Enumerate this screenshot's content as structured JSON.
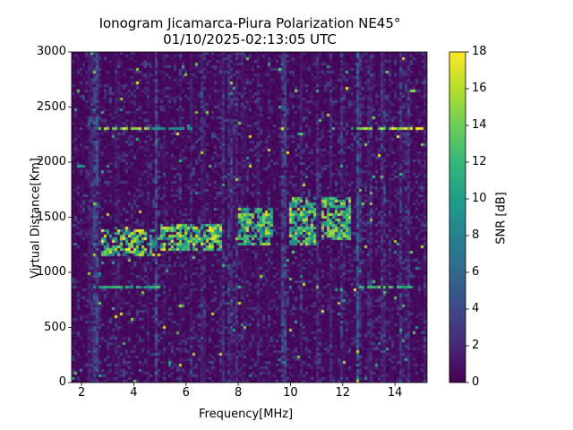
{
  "chart_data": {
    "type": "heatmap",
    "title": "Ionogram Jicamarca-Piura Polarization NE45°",
    "subtitle": "01/10/2025-02:13:05 UTC",
    "xlabel": "Frequency[MHz]",
    "ylabel": "Virtual Distance[Km]",
    "xlim": [
      1.62,
      15.23
    ],
    "ylim": [
      0,
      3000
    ],
    "xticks": [
      2,
      4,
      6,
      8,
      10,
      12,
      14
    ],
    "yticks": [
      0,
      500,
      1000,
      1500,
      2000,
      2500,
      3000
    ],
    "colorbar": {
      "label": "SNR [dB]",
      "range": [
        0,
        18
      ],
      "ticks": [
        0,
        2,
        4,
        6,
        8,
        10,
        12,
        14,
        16,
        18
      ],
      "colormap": "viridis"
    },
    "echo_regions": [
      {
        "f": [
          2.7,
          4.8
        ],
        "d": [
          1150,
          1400
        ],
        "snr": 15
      },
      {
        "f": [
          5.0,
          7.3
        ],
        "d": [
          1200,
          1450
        ],
        "snr": 15
      },
      {
        "f": [
          7.9,
          9.3
        ],
        "d": [
          1250,
          1600
        ],
        "snr": 14
      },
      {
        "f": [
          9.9,
          10.9
        ],
        "d": [
          1250,
          1700
        ],
        "snr": 14
      },
      {
        "f": [
          11.1,
          12.3
        ],
        "d": [
          1300,
          1700
        ],
        "snr": 14
      }
    ],
    "horizontal_lines": [
      {
        "f": [
          2.4,
          4.6
        ],
        "d": 2325,
        "snr": 17
      },
      {
        "f": [
          4.6,
          6.3
        ],
        "d": 2325,
        "snr": 9
      },
      {
        "f": [
          12.5,
          15.0
        ],
        "d": 2325,
        "snr": 17
      },
      {
        "f": [
          2.4,
          5.0
        ],
        "d": 870,
        "snr": 12
      },
      {
        "f": [
          12.6,
          14.6
        ],
        "d": 870,
        "snr": 14
      }
    ],
    "vertical_interference": [
      2.5,
      4.8,
      9.7,
      12.5
    ]
  }
}
